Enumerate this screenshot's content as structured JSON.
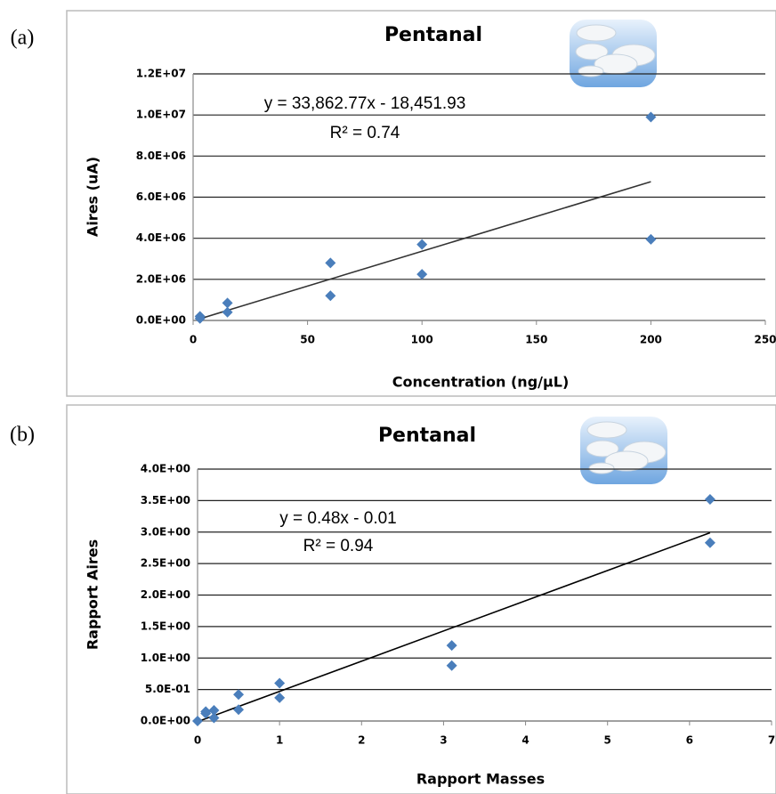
{
  "chart_data": [
    {
      "type": "scatter",
      "panel_label": "(a)",
      "title": "Pentanal",
      "x_label": "Concentration (ng/µL)",
      "y_label": "Aires (uA)",
      "annotations": [
        "y = 33,862.77x - 18,451.93",
        "R² = 0.74"
      ],
      "xlim": [
        0,
        250
      ],
      "xticks": [
        0,
        50,
        100,
        150,
        200,
        250
      ],
      "ylim": [
        0,
        12000000
      ],
      "yticks": [
        {
          "value": 0,
          "label": "0.0E+00"
        },
        {
          "value": 2000000,
          "label": "2.0E+06"
        },
        {
          "value": 4000000,
          "label": "4.0E+06"
        },
        {
          "value": 6000000,
          "label": "6.0E+06"
        },
        {
          "value": 8000000,
          "label": "8.0E+06"
        },
        {
          "value": 10000000,
          "label": "1.0E+07"
        },
        {
          "value": 12000000,
          "label": "1.2E+07"
        }
      ],
      "grid": true,
      "color": "#4a7ebb",
      "x": [
        3,
        3,
        15,
        15,
        60,
        60,
        100,
        100,
        200,
        200
      ],
      "values": [
        200000,
        100000,
        850000,
        400000,
        2800000,
        1200000,
        3700000,
        2250000,
        9900000,
        3950000
      ],
      "trendline": {
        "x": [
          3,
          200
        ],
        "values": [
          83137,
          6754103
        ],
        "color": "#333333"
      }
    },
    {
      "type": "scatter",
      "panel_label": "(b)",
      "title": "Pentanal",
      "x_label": "Rapport Masses",
      "y_label": "Rapport Aires",
      "annotations": [
        "y = 0.48x - 0.01",
        "R² = 0.94"
      ],
      "xlim": [
        0,
        7
      ],
      "xticks": [
        0,
        1,
        2,
        3,
        4,
        5,
        6,
        7
      ],
      "ylim": [
        0,
        4
      ],
      "yticks": [
        {
          "value": 0,
          "label": "0.0E+00"
        },
        {
          "value": 0.5,
          "label": "5.0E-01"
        },
        {
          "value": 1,
          "label": "1.0E+00"
        },
        {
          "value": 1.5,
          "label": "1.5E+00"
        },
        {
          "value": 2,
          "label": "2.0E+00"
        },
        {
          "value": 2.5,
          "label": "2.5E+00"
        },
        {
          "value": 3,
          "label": "3.0E+00"
        },
        {
          "value": 3.5,
          "label": "3.5E+00"
        },
        {
          "value": 4,
          "label": "4.0E+00"
        }
      ],
      "grid": true,
      "color": "#4a7ebb",
      "x": [
        0,
        0.1,
        0.1,
        0.2,
        0.2,
        0.5,
        0.5,
        1,
        1,
        3.1,
        3.1,
        6.25,
        6.25
      ],
      "values": [
        0,
        0.15,
        0.12,
        0.17,
        0.05,
        0.42,
        0.18,
        0.6,
        0.37,
        1.2,
        0.88,
        3.52,
        2.83
      ],
      "trendline": {
        "x": [
          0,
          6.25
        ],
        "values": [
          -0.01,
          2.99
        ],
        "color": "#000000"
      }
    }
  ]
}
